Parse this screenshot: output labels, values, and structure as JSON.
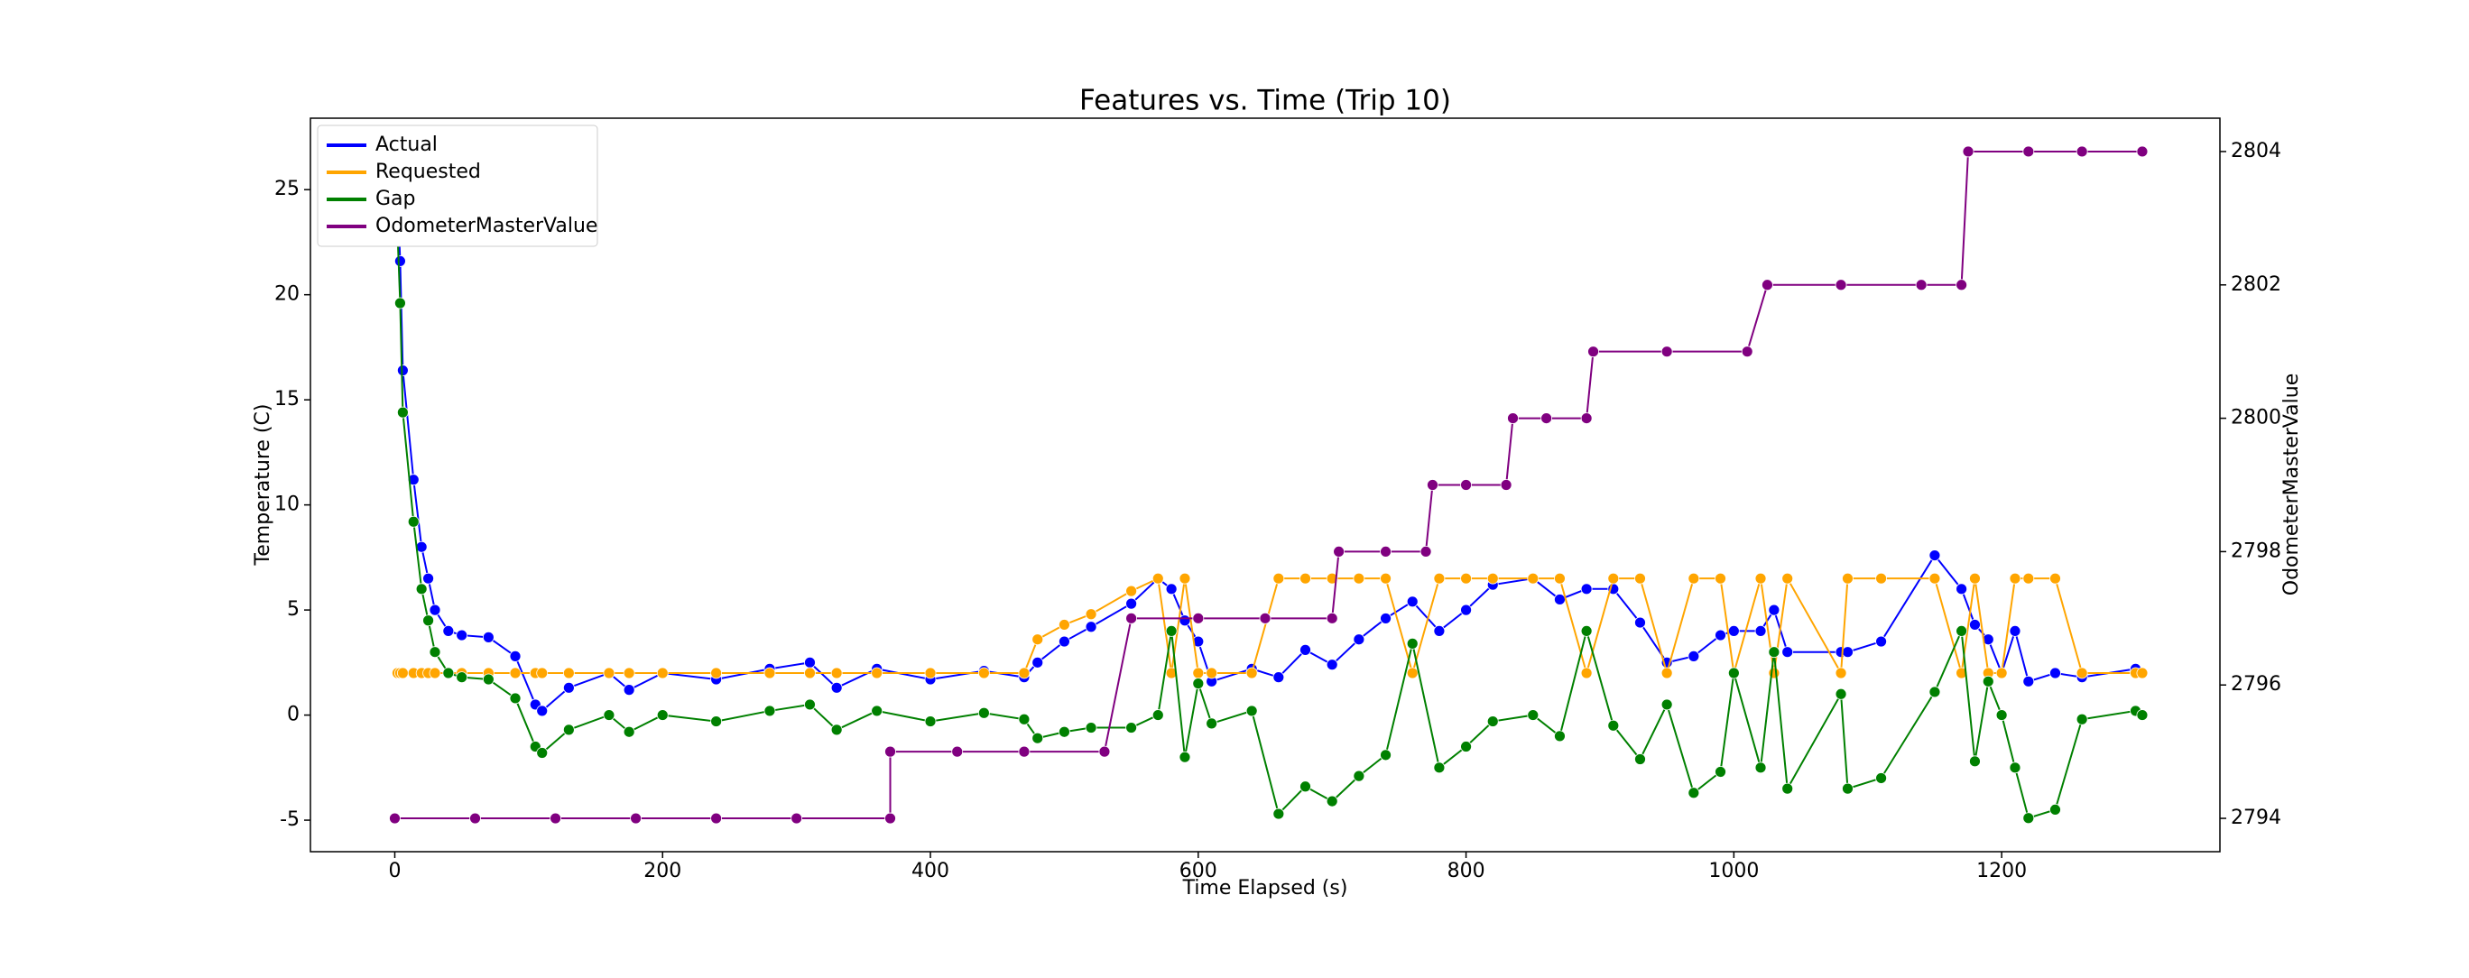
{
  "chart_data": {
    "type": "line",
    "title": "Features vs. Time (Trip 10)",
    "x_label": "Time Elapsed (s)",
    "y_label": "Temperature (C)",
    "y2_label": "OdometerMasterValue",
    "xlim": [
      -63,
      1363
    ],
    "ylim": [
      -6.5,
      28.4
    ],
    "y2lim": [
      2793.5,
      2804.5
    ],
    "xticks": [
      0,
      200,
      400,
      600,
      800,
      1000,
      1200
    ],
    "yticks": [
      -5,
      0,
      5,
      10,
      15,
      20,
      25
    ],
    "y2ticks": [
      2794,
      2796,
      2798,
      2800,
      2802,
      2804
    ],
    "legend": "upper left",
    "x": [
      2,
      4,
      6,
      14,
      20,
      25,
      30,
      40,
      50,
      70,
      90,
      105,
      110,
      130,
      160,
      175,
      200,
      240,
      280,
      310,
      330,
      360,
      400,
      440,
      470,
      480,
      500,
      520,
      550,
      570,
      580,
      590,
      600,
      610,
      640,
      660,
      680,
      700,
      720,
      740,
      760,
      780,
      800,
      820,
      850,
      870,
      890,
      910,
      930,
      950,
      970,
      990,
      1000,
      1020,
      1030,
      1040,
      1080,
      1085,
      1110,
      1150,
      1170,
      1180,
      1190,
      1200,
      1210,
      1220,
      1240,
      1260,
      1300,
      1305
    ],
    "series": [
      {
        "name": "Actual",
        "color": "#0000ff",
        "values": [
          25,
          21.6,
          16.4,
          11.2,
          8,
          6.5,
          5,
          4,
          3.8,
          3.7,
          2.8,
          0.5,
          0.2,
          1.3,
          2,
          1.2,
          2,
          1.7,
          2.2,
          2.5,
          1.3,
          2.2,
          1.7,
          2.1,
          1.8,
          2.5,
          3.5,
          4.2,
          5.3,
          6.5,
          6,
          4.5,
          3.5,
          1.6,
          2.2,
          1.8,
          3.1,
          2.4,
          3.6,
          4.6,
          5.4,
          4,
          5,
          6.2,
          6.5,
          5.5,
          6,
          6,
          4.4,
          2.5,
          2.8,
          3.8,
          4,
          4,
          5,
          3,
          3,
          3,
          3.5,
          7.6,
          6,
          4.3,
          3.6,
          2,
          4,
          1.6,
          2,
          1.8,
          2.2,
          2
        ]
      },
      {
        "name": "Requested",
        "color": "#ffa500",
        "values": [
          2,
          2,
          2,
          2,
          2,
          2,
          2,
          2,
          2,
          2,
          2,
          2,
          2,
          2,
          2,
          2,
          2,
          2,
          2,
          2,
          2,
          2,
          2,
          2,
          2,
          3.6,
          4.3,
          4.8,
          5.9,
          6.5,
          2,
          6.5,
          2,
          2,
          2,
          6.5,
          6.5,
          6.5,
          6.5,
          6.5,
          2,
          6.5,
          6.5,
          6.5,
          6.5,
          6.5,
          2,
          6.5,
          6.5,
          2,
          6.5,
          6.5,
          2,
          6.5,
          2,
          6.5,
          2,
          6.5,
          6.5,
          6.5,
          2,
          6.5,
          2,
          2,
          6.5,
          6.5,
          6.5,
          2,
          2,
          2
        ]
      },
      {
        "name": "Gap",
        "color": "#008000",
        "values": [
          23,
          19.6,
          14.4,
          9.2,
          6,
          4.5,
          3,
          2,
          1.8,
          1.7,
          0.8,
          -1.5,
          -1.8,
          -0.7,
          0,
          -0.8,
          0,
          -0.3,
          0.2,
          0.5,
          -0.7,
          0.2,
          -0.3,
          0.1,
          -0.2,
          -1.1,
          -0.8,
          -0.6,
          -0.6,
          0,
          4,
          -2,
          1.5,
          -0.4,
          0.2,
          -4.7,
          -3.4,
          -4.1,
          -2.9,
          -1.9,
          3.4,
          -2.5,
          -1.5,
          -0.3,
          0,
          -1,
          4,
          -0.5,
          -2.1,
          0.5,
          -3.7,
          -2.7,
          2,
          -2.5,
          3,
          -3.5,
          1,
          -3.5,
          -3,
          1.1,
          4,
          -2.2,
          1.6,
          0,
          -2.5,
          -4.9,
          -4.5,
          -0.2,
          0.2,
          0
        ]
      },
      {
        "name": "OdometerMasterValue",
        "color": "#800080",
        "axis": "y2",
        "x": [
          0,
          60,
          120,
          180,
          240,
          300,
          370,
          370,
          420,
          470,
          530,
          550,
          600,
          650,
          700,
          705,
          740,
          770,
          775,
          800,
          830,
          835,
          860,
          890,
          895,
          950,
          1010,
          1025,
          1080,
          1140,
          1170,
          1175,
          1220,
          1260,
          1305
        ],
        "values": [
          2794,
          2794,
          2794,
          2794,
          2794,
          2794,
          2794,
          2795,
          2795,
          2795,
          2795,
          2797,
          2797,
          2797,
          2797,
          2798,
          2798,
          2798,
          2799,
          2799,
          2799,
          2800,
          2800,
          2800,
          2801,
          2801,
          2801,
          2802,
          2802,
          2802,
          2802,
          2804,
          2804,
          2804,
          2804
        ]
      }
    ]
  }
}
